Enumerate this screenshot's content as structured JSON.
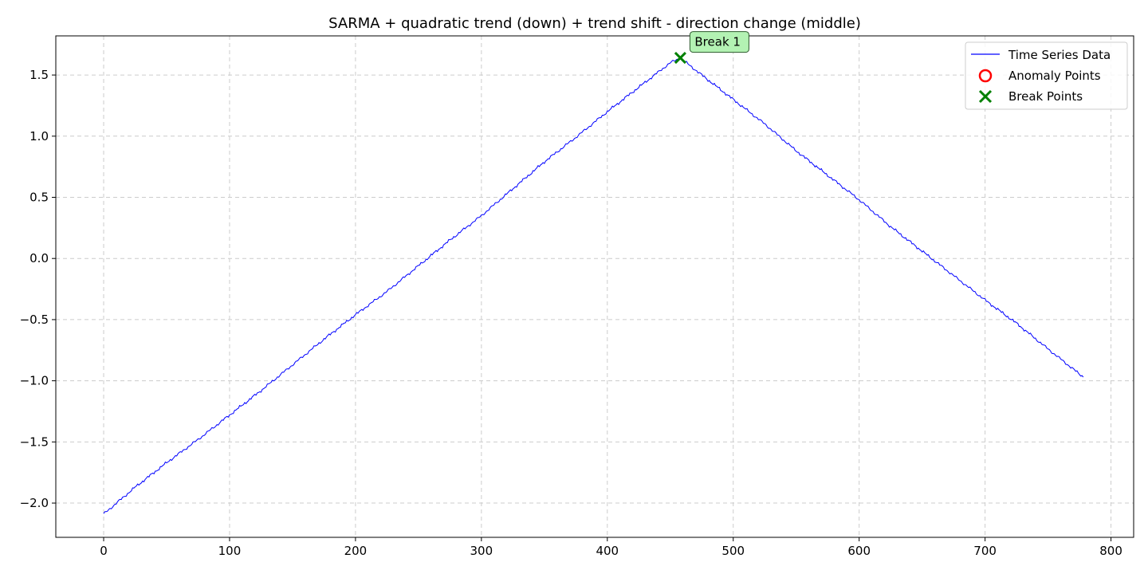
{
  "chart_data": {
    "type": "line",
    "title": "SARMA + quadratic trend (down) + trend shift - direction change (middle)",
    "xlabel": "",
    "ylabel": "",
    "xlim": [
      -38,
      818
    ],
    "ylim": [
      -2.28,
      1.82
    ],
    "xticks": [
      0,
      100,
      200,
      300,
      400,
      500,
      600,
      700,
      800
    ],
    "yticks": [
      -2.0,
      -1.5,
      -1.0,
      -0.5,
      0.0,
      0.5,
      1.0,
      1.5
    ],
    "xtick_labels": [
      "0",
      "100",
      "200",
      "300",
      "400",
      "500",
      "600",
      "700",
      "800"
    ],
    "ytick_labels": [
      "−2.0",
      "−1.5",
      "−1.0",
      "−0.5",
      "0.0",
      "0.5",
      "1.0",
      "1.5"
    ],
    "grid": true,
    "legend_position": "top-right",
    "series": [
      {
        "name": "Time Series Data",
        "color": "#0000ff",
        "x": [
          0,
          25,
          50,
          75,
          100,
          125,
          150,
          175,
          200,
          225,
          250,
          275,
          300,
          325,
          350,
          375,
          400,
          425,
          450,
          458,
          475,
          500,
          525,
          550,
          575,
          600,
          625,
          650,
          675,
          700,
          725,
          750,
          778
        ],
        "y": [
          -2.09,
          -1.87,
          -1.67,
          -1.48,
          -1.28,
          -1.08,
          -0.87,
          -0.66,
          -0.46,
          -0.27,
          -0.06,
          0.15,
          0.35,
          0.57,
          0.79,
          0.99,
          1.2,
          1.4,
          1.6,
          1.64,
          1.5,
          1.3,
          1.1,
          0.88,
          0.68,
          0.48,
          0.26,
          0.06,
          -0.14,
          -0.34,
          -0.53,
          -0.74,
          -0.97
        ]
      }
    ],
    "anomaly_points": {
      "name": "Anomaly Points",
      "color": "#ff0000",
      "points": []
    },
    "break_points": {
      "name": "Break Points",
      "color": "#008000",
      "points": [
        {
          "x": 458,
          "y": 1.64,
          "label": "Break 1"
        }
      ]
    },
    "annotation_bg": "#b3f2b3"
  }
}
